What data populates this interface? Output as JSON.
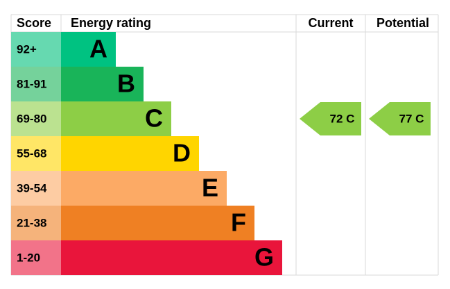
{
  "header": {
    "score": "Score",
    "energy_rating": "Energy rating",
    "current": "Current",
    "potential": "Potential"
  },
  "rows": [
    {
      "score": "92+",
      "letter": "A",
      "color": "#00c281",
      "score_color": "#66d9b0"
    },
    {
      "score": "81-91",
      "letter": "B",
      "color": "#19b459",
      "score_color": "#75d29b"
    },
    {
      "score": "69-80",
      "letter": "C",
      "color": "#8dce46",
      "score_color": "#bbe290"
    },
    {
      "score": "55-68",
      "letter": "D",
      "color": "#ffd500",
      "score_color": "#ffe666"
    },
    {
      "score": "39-54",
      "letter": "E",
      "color": "#fcaa65",
      "score_color": "#fdcca3"
    },
    {
      "score": "21-38",
      "letter": "F",
      "color": "#ef8023",
      "score_color": "#f5b37b"
    },
    {
      "score": "1-20",
      "letter": "G",
      "color": "#e9153b",
      "score_color": "#f27389"
    }
  ],
  "current": {
    "label": "72 C",
    "color": "#8dce46"
  },
  "potential": {
    "label": "77 C",
    "color": "#8dce46"
  }
}
